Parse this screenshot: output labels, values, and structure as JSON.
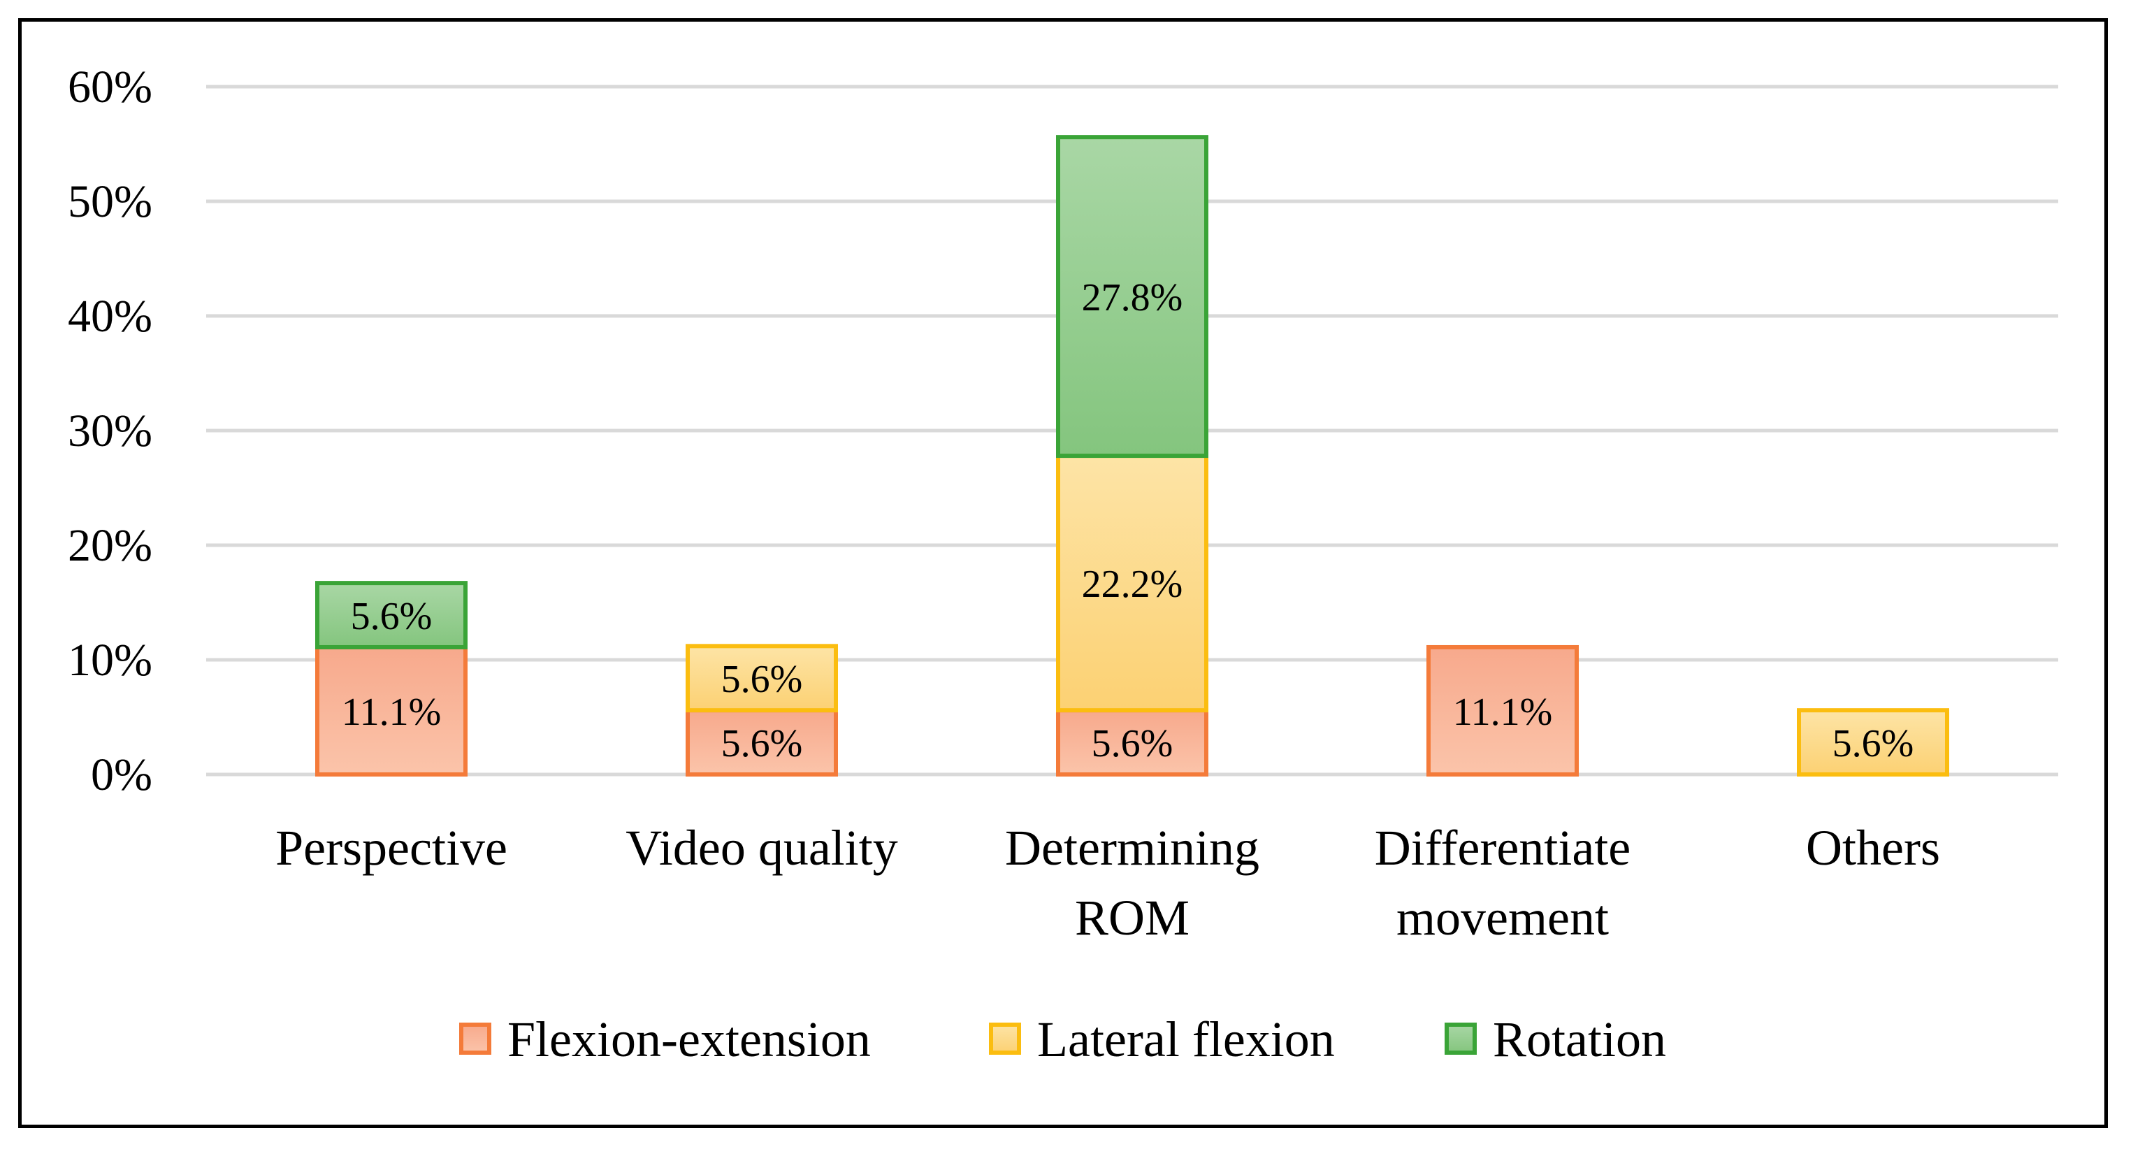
{
  "chart_data": {
    "type": "bar",
    "stacked": true,
    "title": "",
    "xlabel": "",
    "ylabel": "",
    "ylim": [
      0,
      60
    ],
    "yticks": [
      0,
      10,
      20,
      30,
      40,
      50,
      60
    ],
    "ytick_labels": [
      "0%",
      "10%",
      "20%",
      "30%",
      "40%",
      "50%",
      "60%"
    ],
    "grid": true,
    "legend_position": "bottom",
    "categories": [
      [
        "Perspective"
      ],
      [
        "Video quality"
      ],
      [
        "Determining",
        "ROM"
      ],
      [
        "Differentiate",
        "movement"
      ],
      [
        "Others"
      ]
    ],
    "series": [
      {
        "name": "Flexion-extension",
        "fill_top": "#f7a98c",
        "fill_bottom": "#fbc4aa",
        "stroke": "#f47b3a",
        "values": [
          11.1,
          5.6,
          5.6,
          11.1,
          0
        ],
        "labels": [
          "11.1%",
          "5.6%",
          "5.6%",
          "11.1%",
          ""
        ]
      },
      {
        "name": "Lateral flexion",
        "fill_top": "#fde4a6",
        "fill_bottom": "#fcd173",
        "stroke": "#fbbd10",
        "values": [
          0,
          5.6,
          22.2,
          0,
          5.6
        ],
        "labels": [
          "",
          "5.6%",
          "22.2%",
          "",
          "5.6%"
        ]
      },
      {
        "name": "Rotation",
        "fill_top": "#a9d7a5",
        "fill_bottom": "#84c57e",
        "stroke": "#3aa437",
        "values": [
          5.6,
          0,
          27.8,
          0,
          0
        ],
        "labels": [
          "5.6%",
          "",
          "27.8%",
          "",
          ""
        ]
      }
    ]
  }
}
